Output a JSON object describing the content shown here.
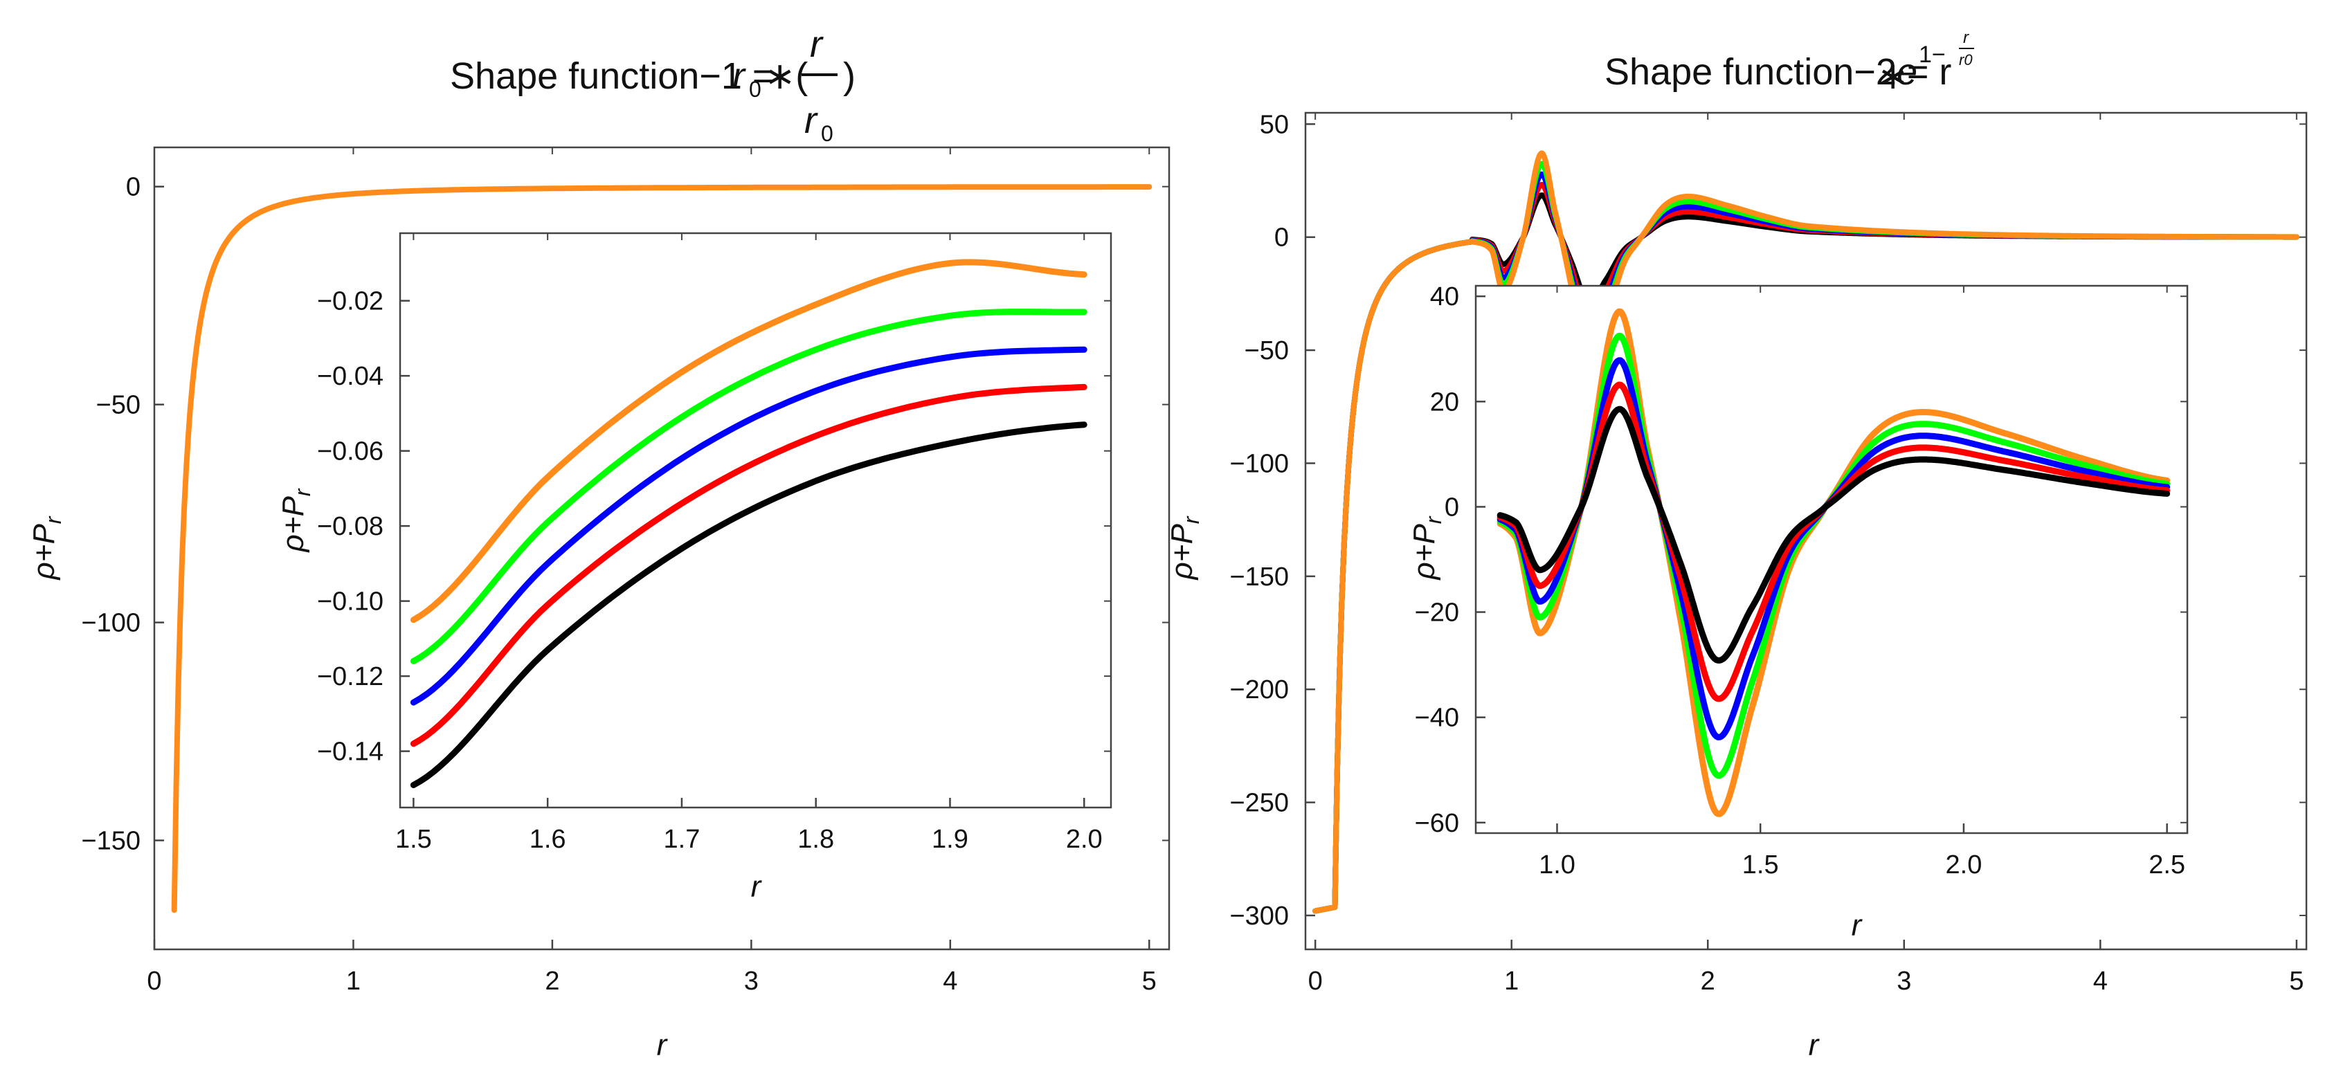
{
  "figure": {
    "left_title": {
      "prefix": "Shape function−1 = ",
      "r0": "r",
      "r0_sub": "0",
      "mul": "∗(",
      "frac_num": "r",
      "frac_den_r": "r",
      "frac_den_sub": "0",
      "close": ")"
    },
    "right_title": {
      "prefix": "Shape function−2 = r",
      "mul": "∗",
      "e": "e",
      "exp_1": "1−",
      "exp_num": "r",
      "exp_den": "r0"
    }
  },
  "colors": {
    "black": "#000000",
    "red": "#ff0000",
    "blue": "#0000ff",
    "green": "#00ff00",
    "orange": "#ff8c1a",
    "frame": "#444444"
  },
  "chart_data": [
    {
      "id": "left-main",
      "type": "line",
      "title": "Shape function−1 = r0∗(r/r0)",
      "xlabel": "r",
      "ylabel": "ρ+Pr",
      "xlim": [
        0,
        5.1
      ],
      "ylim": [
        -175,
        9
      ],
      "xticks": [
        0,
        1,
        2,
        3,
        4,
        5
      ],
      "yticks": [
        0,
        -50,
        -100,
        -150
      ],
      "series": [
        {
          "color": "orange",
          "x": [
            0.1,
            0.12,
            0.15,
            0.2,
            0.25,
            0.3,
            0.35,
            0.4,
            0.5,
            0.6,
            0.8,
            1.0,
            1.5,
            2.0,
            3.0,
            4.0,
            5.0
          ],
          "y": [
            -166,
            -114,
            -72,
            -38,
            -21,
            -13,
            -8.5,
            -5.5,
            -2.8,
            -1.6,
            -0.6,
            -0.25,
            -0.1,
            -0.05,
            -0.02,
            -0.01,
            0
          ]
        }
      ]
    },
    {
      "id": "left-inset",
      "type": "line",
      "xlabel": "r",
      "ylabel": "ρ+Pr",
      "xlim": [
        1.49,
        2.02
      ],
      "ylim": [
        -0.155,
        -0.002
      ],
      "xticks": [
        1.5,
        1.6,
        1.7,
        1.8,
        1.9,
        2.0
      ],
      "xtick_labels": [
        "1.5",
        "1.6",
        "1.7",
        "1.8",
        "1.9",
        "2.0"
      ],
      "yticks": [
        -0.02,
        -0.04,
        -0.06,
        -0.08,
        -0.1,
        -0.12,
        -0.14
      ],
      "ytick_labels": [
        "-0.02",
        "-0.04",
        "-0.06",
        "-0.08",
        "-0.10",
        "-0.12",
        "-0.14"
      ],
      "series": [
        {
          "color": "black",
          "x": [
            1.5,
            1.6,
            1.7,
            1.8,
            1.9,
            2.0
          ],
          "y": [
            -0.149,
            -0.113,
            -0.086,
            -0.068,
            -0.058,
            -0.053
          ]
        },
        {
          "color": "red",
          "x": [
            1.5,
            1.6,
            1.7,
            1.8,
            1.9,
            2.0
          ],
          "y": [
            -0.138,
            -0.101,
            -0.074,
            -0.056,
            -0.046,
            -0.043
          ]
        },
        {
          "color": "blue",
          "x": [
            1.5,
            1.6,
            1.7,
            1.8,
            1.9,
            2.0
          ],
          "y": [
            -0.127,
            -0.09,
            -0.062,
            -0.044,
            -0.035,
            -0.033
          ]
        },
        {
          "color": "green",
          "x": [
            1.5,
            1.6,
            1.7,
            1.8,
            1.9,
            2.0
          ],
          "y": [
            -0.116,
            -0.079,
            -0.051,
            -0.033,
            -0.024,
            -0.023
          ]
        },
        {
          "color": "orange",
          "x": [
            1.5,
            1.6,
            1.7,
            1.8,
            1.9,
            2.0
          ],
          "y": [
            -0.105,
            -0.067,
            -0.039,
            -0.021,
            -0.01,
            -0.013
          ]
        }
      ]
    },
    {
      "id": "right-main",
      "type": "line",
      "title": "Shape function−2 = r∗e^(1−r/r0)",
      "xlabel": "r",
      "ylabel": "ρ+Pr",
      "xlim": [
        -0.05,
        5.05
      ],
      "ylim": [
        -315,
        55
      ],
      "xticks": [
        0,
        1,
        2,
        3,
        4,
        5
      ],
      "yticks": [
        50,
        0,
        -50,
        -100,
        -150,
        -200,
        -250,
        -300
      ],
      "series": [
        {
          "color": "black",
          "amp": 0.5
        },
        {
          "color": "red",
          "amp": 0.625
        },
        {
          "color": "blue",
          "amp": 0.75
        },
        {
          "color": "green",
          "amp": 0.875
        },
        {
          "color": "orange",
          "amp": 1.0
        }
      ]
    },
    {
      "id": "right-inset",
      "type": "line",
      "xlabel": "r",
      "ylabel": "ρ+Pr",
      "xlim": [
        0.8,
        2.55
      ],
      "ylim": [
        -62,
        42
      ],
      "xticks": [
        1.0,
        1.5,
        2.0,
        2.5
      ],
      "xtick_labels": [
        "1.0",
        "1.5",
        "2.0",
        "2.5"
      ],
      "yticks": [
        40,
        20,
        0,
        -20,
        -40,
        -60
      ],
      "series": [
        {
          "color": "black",
          "amp": 0.5
        },
        {
          "color": "red",
          "amp": 0.625
        },
        {
          "color": "blue",
          "amp": 0.75
        },
        {
          "color": "green",
          "amp": 0.875
        },
        {
          "color": "orange",
          "amp": 1.0
        }
      ],
      "orange_keypoints": {
        "x": [
          0.8,
          0.9,
          0.96,
          1.06,
          1.15,
          1.22,
          1.3,
          1.39,
          1.48,
          1.57,
          1.66,
          1.78,
          1.9,
          2.1,
          2.3,
          2.5
        ],
        "y": [
          -2,
          -6,
          -24,
          0,
          37,
          12,
          -20,
          -58,
          -38,
          -12,
          0,
          14,
          18,
          14,
          9,
          5
        ]
      }
    }
  ]
}
